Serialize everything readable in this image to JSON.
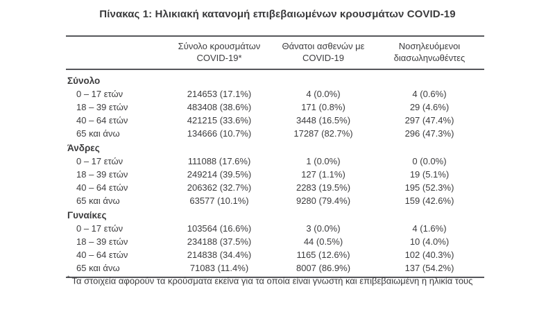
{
  "title": "Πίνακας 1: Ηλικιακή κατανομή επιβεβαιωμένων κρουσμάτων COVID-19",
  "colors": {
    "text": "#3b3b3d",
    "rule": "#55565a",
    "background": "#ffffff"
  },
  "table": {
    "columns": [
      {
        "line1": "Σύνολο κρουσμάτων",
        "line2": "COVID-19*"
      },
      {
        "line1": "Θάνατοι ασθενών με",
        "line2": "COVID-19"
      },
      {
        "line1": "Νοσηλευόμενοι",
        "line2": "διασωληνωθέντες"
      }
    ],
    "sections": [
      {
        "label": "Σύνολο",
        "rows": [
          {
            "age": "0 – 17 ετών",
            "cases": "214653 (17.1%)",
            "deaths": "4 (0.0%)",
            "intubated": "4 (0.6%)"
          },
          {
            "age": "18 – 39 ετών",
            "cases": "483408 (38.6%)",
            "deaths": "171 (0.8%)",
            "intubated": "29 (4.6%)"
          },
          {
            "age": "40 – 64 ετών",
            "cases": "421215 (33.6%)",
            "deaths": "3448 (16.5%)",
            "intubated": "297 (47.4%)"
          },
          {
            "age": "65 και άνω",
            "cases": "134666 (10.7%)",
            "deaths": "17287 (82.7%)",
            "intubated": "296 (47.3%)"
          }
        ]
      },
      {
        "label": "Άνδρες",
        "rows": [
          {
            "age": "0 – 17 ετών",
            "cases": "111088 (17.6%)",
            "deaths": "1 (0.0%)",
            "intubated": "0 (0.0%)"
          },
          {
            "age": "18 – 39 ετών",
            "cases": "249214 (39.5%)",
            "deaths": "127 (1.1%)",
            "intubated": "19 (5.1%)"
          },
          {
            "age": "40 – 64 ετών",
            "cases": "206362 (32.7%)",
            "deaths": "2283 (19.5%)",
            "intubated": "195 (52.3%)"
          },
          {
            "age": "65 και άνω",
            "cases": "63577 (10.1%)",
            "deaths": "9280 (79.4%)",
            "intubated": "159 (42.6%)"
          }
        ]
      },
      {
        "label": "Γυναίκες",
        "rows": [
          {
            "age": "0 – 17 ετών",
            "cases": "103564 (16.6%)",
            "deaths": "3 (0.0%)",
            "intubated": "4 (1.6%)"
          },
          {
            "age": "18 – 39 ετών",
            "cases": "234188 (37.5%)",
            "deaths": "44 (0.5%)",
            "intubated": "10 (4.0%)"
          },
          {
            "age": "40 – 64 ετών",
            "cases": "214838 (34.4%)",
            "deaths": "1165 (12.6%)",
            "intubated": "102 (40.3%)"
          },
          {
            "age": "65 και άνω",
            "cases": "71083 (11.4%)",
            "deaths": "8007 (86.9%)",
            "intubated": "137 (54.2%)"
          }
        ]
      }
    ]
  },
  "footnote": {
    "marker": "*",
    "text": "Τα στοιχεία αφορούν τα κρούσματα εκείνα για τα οποία είναι γνωστή και επιβεβαιωμένη η ηλικία τους"
  },
  "chart_data": {
    "type": "table",
    "title": "Πίνακας 1: Ηλικιακή κατανομή επιβεβαιωμένων κρουσμάτων COVID-19",
    "columns": [
      "Σύνολο κρουσμάτων COVID-19*",
      "Θάνατοι ασθενών με COVID-19",
      "Νοσηλευόμενοι διασωληνωθέντες"
    ],
    "groups": [
      {
        "name": "Σύνολο",
        "rows": [
          [
            "0 – 17 ετών",
            214653,
            17.1,
            4,
            0.0,
            4,
            0.6
          ],
          [
            "18 – 39 ετών",
            483408,
            38.6,
            171,
            0.8,
            29,
            4.6
          ],
          [
            "40 – 64 ετών",
            421215,
            33.6,
            3448,
            16.5,
            297,
            47.4
          ],
          [
            "65 και άνω",
            134666,
            10.7,
            17287,
            82.7,
            296,
            47.3
          ]
        ]
      },
      {
        "name": "Άνδρες",
        "rows": [
          [
            "0 – 17 ετών",
            111088,
            17.6,
            1,
            0.0,
            0,
            0.0
          ],
          [
            "18 – 39 ετών",
            249214,
            39.5,
            127,
            1.1,
            19,
            5.1
          ],
          [
            "40 – 64 ετών",
            206362,
            32.7,
            2283,
            19.5,
            195,
            52.3
          ],
          [
            "65 και άνω",
            63577,
            10.1,
            9280,
            79.4,
            159,
            42.6
          ]
        ]
      },
      {
        "name": "Γυναίκες",
        "rows": [
          [
            "0 – 17 ετών",
            103564,
            16.6,
            3,
            0.0,
            4,
            1.6
          ],
          [
            "18 – 39 ετών",
            234188,
            37.5,
            44,
            0.5,
            10,
            4.0
          ],
          [
            "40 – 64 ετών",
            214838,
            34.4,
            1165,
            12.6,
            102,
            40.3
          ],
          [
            "65 και άνω",
            71083,
            11.4,
            8007,
            86.9,
            137,
            54.2
          ]
        ]
      }
    ]
  }
}
